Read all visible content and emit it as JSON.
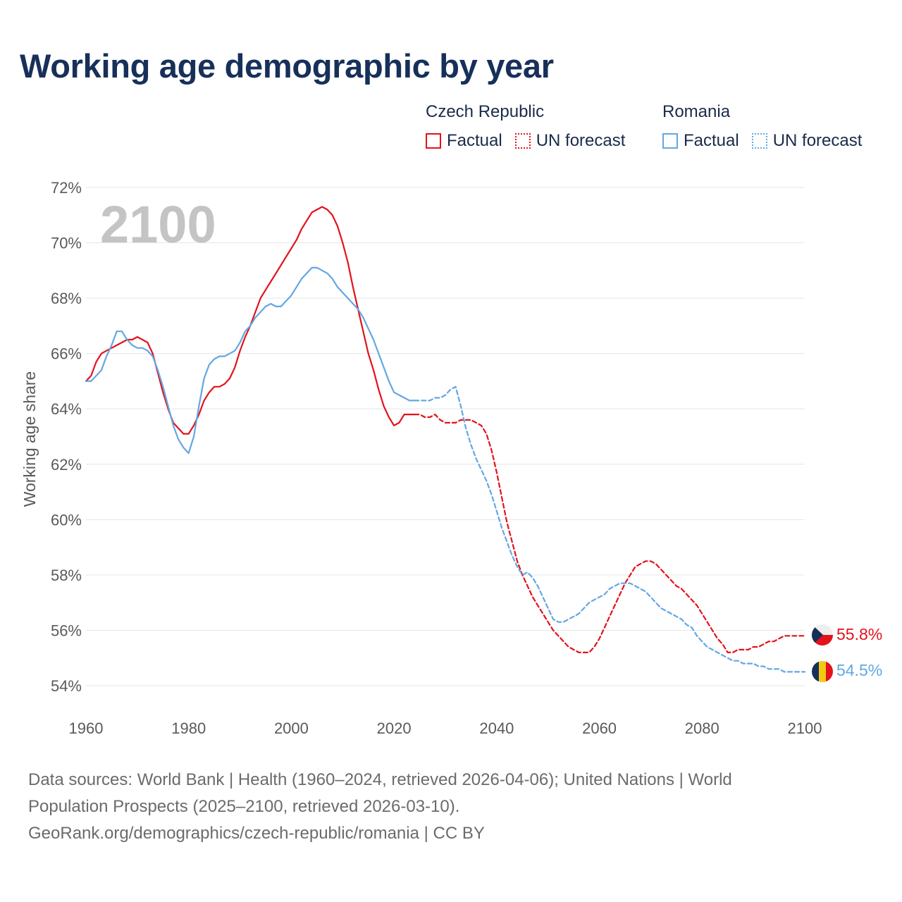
{
  "title": "Working age demographic by year",
  "legend": {
    "groups": [
      {
        "name": "Czech Republic",
        "color": "#e3121b",
        "factual_label": "Factual",
        "forecast_label": "UN forecast"
      },
      {
        "name": "Romania",
        "color": "#63a7e3",
        "factual_label": "Factual",
        "forecast_label": "UN forecast"
      }
    ]
  },
  "year_label": "2100",
  "end_labels": {
    "czech": "55.8%",
    "romania": "54.5%"
  },
  "sources": {
    "line1": "Data sources: World Bank | Health (1960–2024, retrieved 2026-04-06); United Nations | World",
    "line2": "Population Prospects (2025–2100, retrieved 2026-03-10).",
    "line3": "GeoRank.org/demographics/czech-republic/romania | CC BY"
  },
  "chart_data": {
    "type": "line",
    "title": "Working age demographic by year",
    "xlabel": "",
    "ylabel": "Working age share",
    "xlim": [
      1960,
      2100
    ],
    "ylim": [
      54,
      72
    ],
    "x_ticks": [
      1960,
      1980,
      2000,
      2020,
      2040,
      2060,
      2080,
      2100
    ],
    "y_ticks": [
      54,
      56,
      58,
      60,
      62,
      64,
      66,
      68,
      70,
      72
    ],
    "y_tick_labels": [
      "54%",
      "56%",
      "58%",
      "60%",
      "62%",
      "64%",
      "66%",
      "68%",
      "70%",
      "72%"
    ],
    "grid": true,
    "series": [
      {
        "name": "Czech Republic",
        "segment": "Factual",
        "color": "#e3121b",
        "style": "solid",
        "x": [
          1960,
          1961,
          1962,
          1963,
          1964,
          1965,
          1966,
          1967,
          1968,
          1969,
          1970,
          1971,
          1972,
          1973,
          1974,
          1975,
          1976,
          1977,
          1978,
          1979,
          1980,
          1981,
          1982,
          1983,
          1984,
          1985,
          1986,
          1987,
          1988,
          1989,
          1990,
          1991,
          1992,
          1993,
          1994,
          1995,
          1996,
          1997,
          1998,
          1999,
          2000,
          2001,
          2002,
          2003,
          2004,
          2005,
          2006,
          2007,
          2008,
          2009,
          2010,
          2011,
          2012,
          2013,
          2014,
          2015,
          2016,
          2017,
          2018,
          2019,
          2020,
          2021,
          2022,
          2023,
          2024
        ],
        "y": [
          65.0,
          65.2,
          65.7,
          66.0,
          66.1,
          66.2,
          66.3,
          66.4,
          66.5,
          66.5,
          66.6,
          66.5,
          66.4,
          66.0,
          65.3,
          64.6,
          64.0,
          63.5,
          63.3,
          63.1,
          63.1,
          63.4,
          63.8,
          64.3,
          64.6,
          64.8,
          64.8,
          64.9,
          65.1,
          65.5,
          66.1,
          66.6,
          67.0,
          67.5,
          68.0,
          68.3,
          68.6,
          68.9,
          69.2,
          69.5,
          69.8,
          70.1,
          70.5,
          70.8,
          71.1,
          71.2,
          71.3,
          71.2,
          71.0,
          70.6,
          70.0,
          69.3,
          68.4,
          67.6,
          66.8,
          66.0,
          65.4,
          64.7,
          64.1,
          63.7,
          63.4,
          63.5,
          63.8,
          63.8,
          63.8
        ]
      },
      {
        "name": "Czech Republic",
        "segment": "UN forecast",
        "color": "#e3121b",
        "style": "dashed",
        "x": [
          2024,
          2025,
          2026,
          2027,
          2028,
          2029,
          2030,
          2031,
          2032,
          2033,
          2034,
          2035,
          2036,
          2037,
          2038,
          2039,
          2040,
          2041,
          2042,
          2043,
          2044,
          2045,
          2046,
          2047,
          2048,
          2049,
          2050,
          2051,
          2052,
          2053,
          2054,
          2055,
          2056,
          2057,
          2058,
          2059,
          2060,
          2061,
          2062,
          2063,
          2064,
          2065,
          2066,
          2067,
          2068,
          2069,
          2070,
          2071,
          2072,
          2073,
          2074,
          2075,
          2076,
          2077,
          2078,
          2079,
          2080,
          2081,
          2082,
          2083,
          2084,
          2085,
          2086,
          2087,
          2088,
          2089,
          2090,
          2091,
          2092,
          2093,
          2094,
          2095,
          2096,
          2097,
          2098,
          2099,
          2100
        ],
        "y": [
          63.8,
          63.8,
          63.7,
          63.7,
          63.8,
          63.6,
          63.5,
          63.5,
          63.5,
          63.6,
          63.6,
          63.6,
          63.5,
          63.4,
          63.1,
          62.5,
          61.7,
          60.8,
          59.9,
          59.2,
          58.5,
          58.0,
          57.6,
          57.2,
          56.9,
          56.6,
          56.3,
          56.0,
          55.8,
          55.6,
          55.4,
          55.3,
          55.2,
          55.2,
          55.2,
          55.4,
          55.7,
          56.1,
          56.5,
          56.9,
          57.3,
          57.7,
          58.0,
          58.3,
          58.4,
          58.5,
          58.5,
          58.4,
          58.2,
          58.0,
          57.8,
          57.6,
          57.5,
          57.3,
          57.1,
          56.9,
          56.6,
          56.3,
          56.0,
          55.7,
          55.5,
          55.2,
          55.2,
          55.3,
          55.3,
          55.3,
          55.4,
          55.4,
          55.5,
          55.6,
          55.6,
          55.7,
          55.8,
          55.8,
          55.8,
          55.8,
          55.8
        ]
      },
      {
        "name": "Romania",
        "segment": "Factual",
        "color": "#63a7e3",
        "style": "solid",
        "x": [
          1960,
          1961,
          1962,
          1963,
          1964,
          1965,
          1966,
          1967,
          1968,
          1969,
          1970,
          1971,
          1972,
          1973,
          1974,
          1975,
          1976,
          1977,
          1978,
          1979,
          1980,
          1981,
          1982,
          1983,
          1984,
          1985,
          1986,
          1987,
          1988,
          1989,
          1990,
          1991,
          1992,
          1993,
          1994,
          1995,
          1996,
          1997,
          1998,
          1999,
          2000,
          2001,
          2002,
          2003,
          2004,
          2005,
          2006,
          2007,
          2008,
          2009,
          2010,
          2011,
          2012,
          2013,
          2014,
          2015,
          2016,
          2017,
          2018,
          2019,
          2020,
          2021,
          2022,
          2023,
          2024
        ],
        "y": [
          65.0,
          65.0,
          65.2,
          65.4,
          65.9,
          66.3,
          66.8,
          66.8,
          66.5,
          66.3,
          66.2,
          66.2,
          66.1,
          65.9,
          65.4,
          64.8,
          64.1,
          63.4,
          62.9,
          62.6,
          62.4,
          63.0,
          64.1,
          65.1,
          65.6,
          65.8,
          65.9,
          65.9,
          66.0,
          66.1,
          66.4,
          66.8,
          67.0,
          67.3,
          67.5,
          67.7,
          67.8,
          67.7,
          67.7,
          67.9,
          68.1,
          68.4,
          68.7,
          68.9,
          69.1,
          69.1,
          69.0,
          68.9,
          68.7,
          68.4,
          68.2,
          68.0,
          67.8,
          67.6,
          67.3,
          66.9,
          66.5,
          66.0,
          65.5,
          65.0,
          64.6,
          64.5,
          64.4,
          64.3,
          64.3
        ]
      },
      {
        "name": "Romania",
        "segment": "UN forecast",
        "color": "#63a7e3",
        "style": "dashed",
        "x": [
          2024,
          2025,
          2026,
          2027,
          2028,
          2029,
          2030,
          2031,
          2032,
          2033,
          2034,
          2035,
          2036,
          2037,
          2038,
          2039,
          2040,
          2041,
          2042,
          2043,
          2044,
          2045,
          2046,
          2047,
          2048,
          2049,
          2050,
          2051,
          2052,
          2053,
          2054,
          2055,
          2056,
          2057,
          2058,
          2059,
          2060,
          2061,
          2062,
          2063,
          2064,
          2065,
          2066,
          2067,
          2068,
          2069,
          2070,
          2071,
          2072,
          2073,
          2074,
          2075,
          2076,
          2077,
          2078,
          2079,
          2080,
          2081,
          2082,
          2083,
          2084,
          2085,
          2086,
          2087,
          2088,
          2089,
          2090,
          2091,
          2092,
          2093,
          2094,
          2095,
          2096,
          2097,
          2098,
          2099,
          2100
        ],
        "y": [
          64.3,
          64.3,
          64.3,
          64.3,
          64.4,
          64.4,
          64.5,
          64.7,
          64.8,
          64.1,
          63.3,
          62.7,
          62.2,
          61.8,
          61.4,
          60.9,
          60.3,
          59.7,
          59.2,
          58.7,
          58.3,
          58.0,
          58.1,
          57.9,
          57.6,
          57.2,
          56.8,
          56.4,
          56.3,
          56.3,
          56.4,
          56.5,
          56.6,
          56.8,
          57.0,
          57.1,
          57.2,
          57.3,
          57.5,
          57.6,
          57.7,
          57.7,
          57.7,
          57.6,
          57.5,
          57.4,
          57.2,
          57.0,
          56.8,
          56.7,
          56.6,
          56.5,
          56.4,
          56.2,
          56.1,
          55.8,
          55.6,
          55.4,
          55.3,
          55.2,
          55.1,
          55.0,
          54.9,
          54.9,
          54.8,
          54.8,
          54.8,
          54.7,
          54.7,
          54.6,
          54.6,
          54.6,
          54.5,
          54.5,
          54.5,
          54.5,
          54.5
        ]
      }
    ]
  }
}
